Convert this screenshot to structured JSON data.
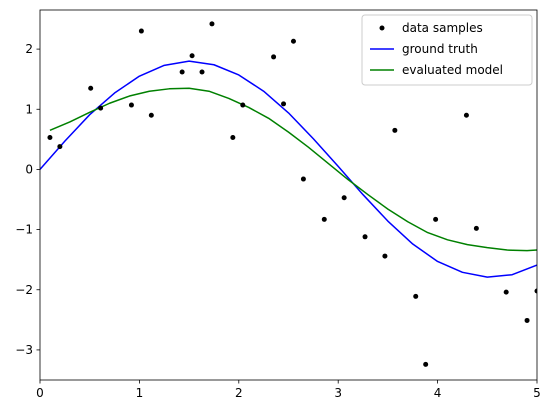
{
  "chart_data": {
    "type": "scatter",
    "xlim": [
      0,
      5
    ],
    "ylim": [
      -3.5,
      2.65
    ],
    "grid": false,
    "legend_placement": "top-right",
    "x_ticks": [
      0,
      1,
      2,
      3,
      4,
      5
    ],
    "x_tick_labels": [
      "0",
      "1",
      "2",
      "3",
      "4",
      "5"
    ],
    "y_ticks": [
      -3,
      -2,
      -1,
      0,
      1,
      2
    ],
    "y_tick_labels": [
      "−3",
      "−2",
      "−1",
      "0",
      "1",
      "2"
    ],
    "series": [
      {
        "name": "data samples",
        "kind": "points",
        "color": "#000000",
        "points": [
          [
            0.1,
            0.53
          ],
          [
            0.2,
            0.38
          ],
          [
            0.51,
            1.35
          ],
          [
            0.61,
            1.02
          ],
          [
            0.92,
            1.07
          ],
          [
            1.02,
            2.3
          ],
          [
            1.12,
            0.9
          ],
          [
            1.43,
            1.62
          ],
          [
            1.53,
            1.89
          ],
          [
            1.63,
            1.62
          ],
          [
            1.73,
            2.42
          ],
          [
            1.94,
            0.53
          ],
          [
            2.04,
            1.07
          ],
          [
            2.35,
            1.87
          ],
          [
            2.45,
            1.09
          ],
          [
            2.55,
            2.13
          ],
          [
            2.65,
            -0.16
          ],
          [
            2.86,
            -0.83
          ],
          [
            3.06,
            -0.47
          ],
          [
            3.27,
            -1.12
          ],
          [
            3.47,
            -1.44
          ],
          [
            3.57,
            0.65
          ],
          [
            3.78,
            -2.11
          ],
          [
            3.88,
            -3.24
          ],
          [
            3.98,
            -0.83
          ],
          [
            4.29,
            0.9
          ],
          [
            4.39,
            -0.98
          ],
          [
            4.69,
            -2.04
          ],
          [
            4.9,
            -2.51
          ],
          [
            5.0,
            -2.02
          ]
        ]
      },
      {
        "name": "ground truth",
        "kind": "line",
        "color": "#0000ff",
        "points": [
          [
            0.0,
            0.0
          ],
          [
            0.25,
            0.47
          ],
          [
            0.5,
            0.91
          ],
          [
            0.75,
            1.27
          ],
          [
            1.0,
            1.55
          ],
          [
            1.25,
            1.73
          ],
          [
            1.5,
            1.8
          ],
          [
            1.75,
            1.74
          ],
          [
            2.0,
            1.57
          ],
          [
            2.25,
            1.3
          ],
          [
            2.5,
            0.94
          ],
          [
            2.75,
            0.51
          ],
          [
            3.0,
            0.05
          ],
          [
            3.25,
            -0.42
          ],
          [
            3.5,
            -0.86
          ],
          [
            3.75,
            -1.24
          ],
          [
            4.0,
            -1.53
          ],
          [
            4.25,
            -1.71
          ],
          [
            4.5,
            -1.79
          ],
          [
            4.75,
            -1.75
          ],
          [
            5.0,
            -1.59
          ]
        ]
      },
      {
        "name": "evaluated model",
        "kind": "line",
        "color": "#008000",
        "points": [
          [
            0.1,
            0.65
          ],
          [
            0.3,
            0.79
          ],
          [
            0.5,
            0.95
          ],
          [
            0.7,
            1.1
          ],
          [
            0.9,
            1.22
          ],
          [
            1.1,
            1.3
          ],
          [
            1.3,
            1.34
          ],
          [
            1.5,
            1.35
          ],
          [
            1.7,
            1.3
          ],
          [
            1.9,
            1.18
          ],
          [
            2.1,
            1.03
          ],
          [
            2.3,
            0.85
          ],
          [
            2.5,
            0.62
          ],
          [
            2.7,
            0.37
          ],
          [
            2.9,
            0.1
          ],
          [
            3.1,
            -0.17
          ],
          [
            3.3,
            -0.42
          ],
          [
            3.5,
            -0.66
          ],
          [
            3.7,
            -0.87
          ],
          [
            3.9,
            -1.05
          ],
          [
            4.1,
            -1.17
          ],
          [
            4.3,
            -1.25
          ],
          [
            4.5,
            -1.3
          ],
          [
            4.7,
            -1.34
          ],
          [
            4.9,
            -1.35
          ],
          [
            5.0,
            -1.34
          ]
        ]
      }
    ]
  }
}
